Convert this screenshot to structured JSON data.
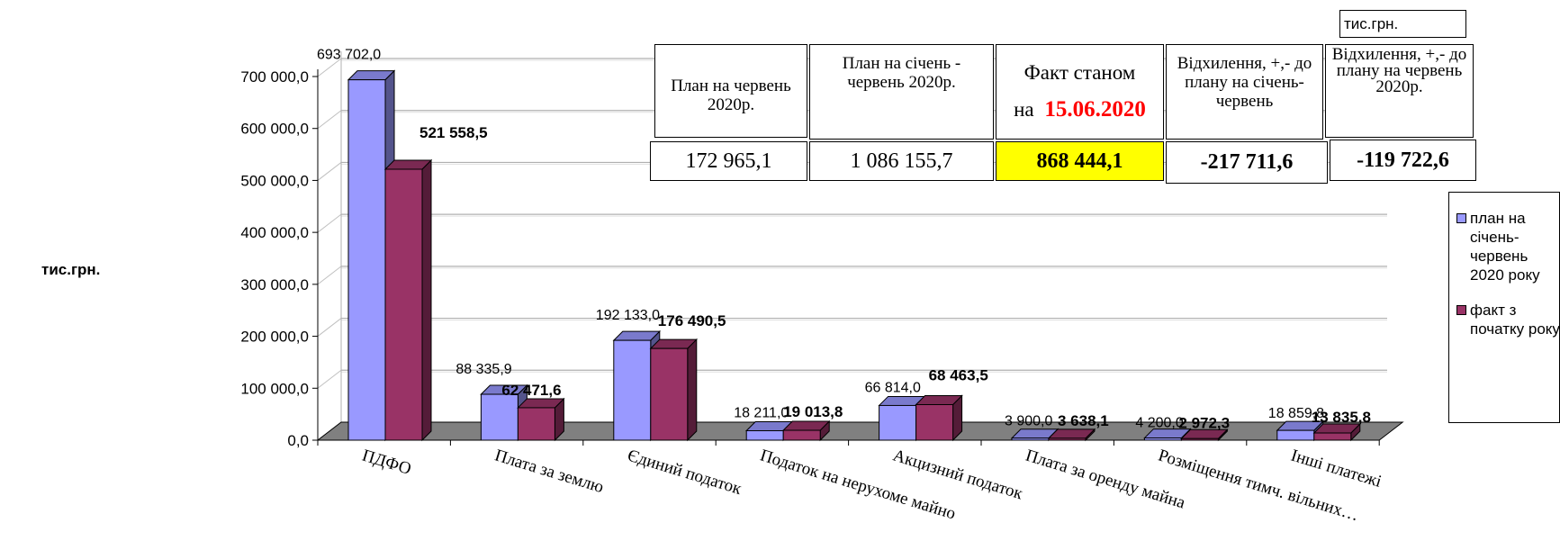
{
  "unit_label": "тис.грн.",
  "unit_box": "тис.грн.",
  "colors": {
    "plan": "#9999ff",
    "fact": "#993366",
    "floor": "#808080",
    "highlight": "#ffff00",
    "red": "#ff0000"
  },
  "summary": {
    "headers": [
      "План на червень 2020р.",
      "План на січень - червень 2020р.",
      "Факт станом",
      "Відхилення, +,- до плану на січень-червень",
      "Відхилення, +,- до плану на червень 2020р."
    ],
    "fact_prefix": "на",
    "fact_date": "15.06.2020",
    "values": [
      "172 965,1",
      "1 086 155,7",
      "868 444,1",
      "-217 711,6",
      "-119 722,6"
    ]
  },
  "chart_data": {
    "type": "bar",
    "categories": [
      "ПДФО",
      "Плата за землю",
      "Єдиний податок",
      "Податок на нерухоме майно",
      "Акцизний податок",
      "Плата за оренду майна",
      "Розміщення тимч. вільних…",
      "Інші платежі"
    ],
    "series": [
      {
        "name": "план на січень-червень 2020 року",
        "values": [
          693702.0,
          88335.9,
          192133.0,
          18211.0,
          66814.0,
          3900.0,
          4200.0,
          18859.8
        ],
        "labels": [
          "693 702,0",
          "88 335,9",
          "192 133,0",
          "18 211,0",
          "66 814,0",
          "3 900,0",
          "4 200,0",
          "18 859,8"
        ]
      },
      {
        "name": "факт з початку року",
        "values": [
          521558.5,
          62471.6,
          176490.5,
          19013.8,
          68463.5,
          3638.1,
          2972.3,
          13835.8
        ],
        "labels": [
          "521 558,5",
          "62 471,6",
          "176 490,5",
          "19 013,8",
          "68 463,5",
          "3 638,1",
          "2 972,3",
          "13 835,8"
        ]
      }
    ],
    "yticks": [
      "0,0",
      "100 000,0",
      "200 000,0",
      "300 000,0",
      "400 000,0",
      "500 000,0",
      "600 000,0",
      "700 000,0"
    ],
    "ylim": [
      0,
      700000
    ],
    "grid": true,
    "legend": "right"
  }
}
